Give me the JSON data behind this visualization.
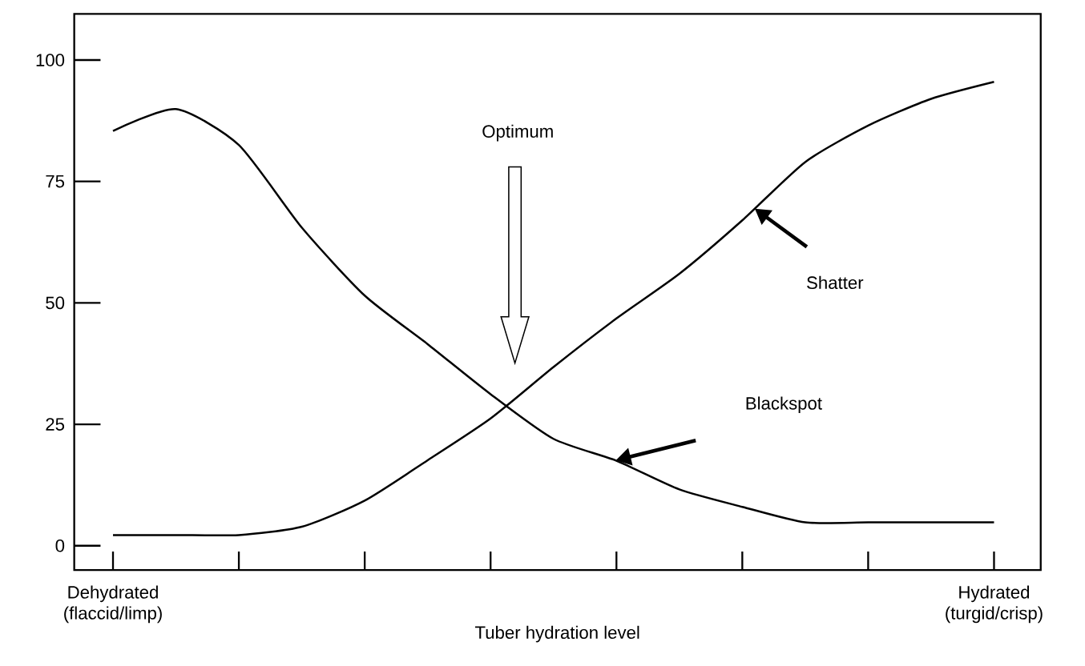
{
  "chart_data": {
    "type": "line",
    "xlabel": "Tuber hydration level",
    "categories": [
      "Dehydrated (flaccid/limp)",
      null,
      null,
      null,
      null,
      null,
      null,
      null,
      null,
      null,
      null,
      null,
      null,
      null,
      "Hydrated (turgid/crisp)"
    ],
    "ylim": [
      -5,
      109.5
    ],
    "yticks": [
      0,
      25,
      50,
      75,
      100
    ],
    "line_style": "solid",
    "series": [
      {
        "color": "#000000",
        "values": [
          85.4,
          89.9,
          82.5,
          65.5,
          51.5,
          41.5,
          31.2,
          22,
          17.5,
          11.6,
          8,
          4.8,
          4.8,
          4.8,
          4.8
        ]
      },
      {
        "color": "#000000",
        "values": [
          2.2,
          2.2,
          2.2,
          3.9,
          9.3,
          17.6,
          26.2,
          36.8,
          46.8,
          56,
          67,
          79,
          86.5,
          92,
          95.5
        ]
      }
    ],
    "annotations": [
      "Optimum",
      "Shatter",
      "Blackspot"
    ]
  }
}
